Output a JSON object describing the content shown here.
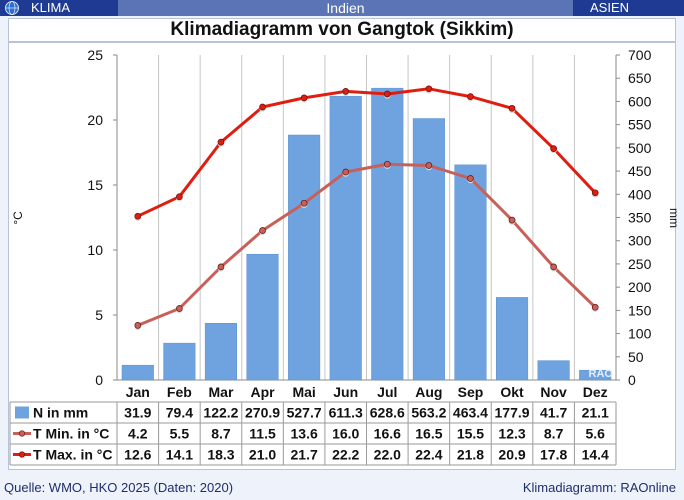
{
  "header": {
    "left": "KLIMA",
    "center": "Indien",
    "right": "ASIEN"
  },
  "title": "Klimadiagramm von Gangtok (Sikkim)",
  "footer": {
    "left": "Quelle: WMO, HKO 2025 (Daten: 2020)",
    "right": "Klimadiagramm: RAOnline"
  },
  "watermark": "RAO",
  "icons": {
    "logo": "globe-icon"
  },
  "colors": {
    "bar": "#6fa3df",
    "tmin": "#c8605a",
    "tmax": "#e01d0e",
    "header": "#1f3a93"
  },
  "chart_data": {
    "type": "bar",
    "categories": [
      "Jan",
      "Feb",
      "Mar",
      "Apr",
      "Mai",
      "Jun",
      "Jul",
      "Aug",
      "Sep",
      "Okt",
      "Nov",
      "Dez"
    ],
    "series": [
      {
        "name": "N in mm",
        "type": "bar",
        "axis": "right",
        "values": [
          31.9,
          79.4,
          122.2,
          270.9,
          527.7,
          611.3,
          628.6,
          563.2,
          463.4,
          177.9,
          41.7,
          21.1
        ]
      },
      {
        "name": "T Min. in °C",
        "type": "line",
        "axis": "left",
        "values": [
          4.2,
          5.5,
          8.7,
          11.5,
          13.6,
          16.0,
          16.6,
          16.5,
          15.5,
          12.3,
          8.7,
          5.6
        ]
      },
      {
        "name": "T Max. in °C",
        "type": "line",
        "axis": "left",
        "values": [
          12.6,
          14.1,
          18.3,
          21.0,
          21.7,
          22.2,
          22.0,
          22.4,
          21.8,
          20.9,
          17.8,
          14.4
        ]
      }
    ],
    "ylabel_left": "°C",
    "ylabel_right": "mm",
    "ylim_left": [
      0,
      25
    ],
    "ylim_right": [
      0,
      700
    ],
    "yticks_left": [
      0,
      5,
      10,
      15,
      20,
      25
    ],
    "yticks_right": [
      0,
      50,
      100,
      150,
      200,
      250,
      300,
      350,
      400,
      450,
      500,
      550,
      600,
      650,
      700
    ],
    "grid": "vertical",
    "legend": "table-below"
  }
}
